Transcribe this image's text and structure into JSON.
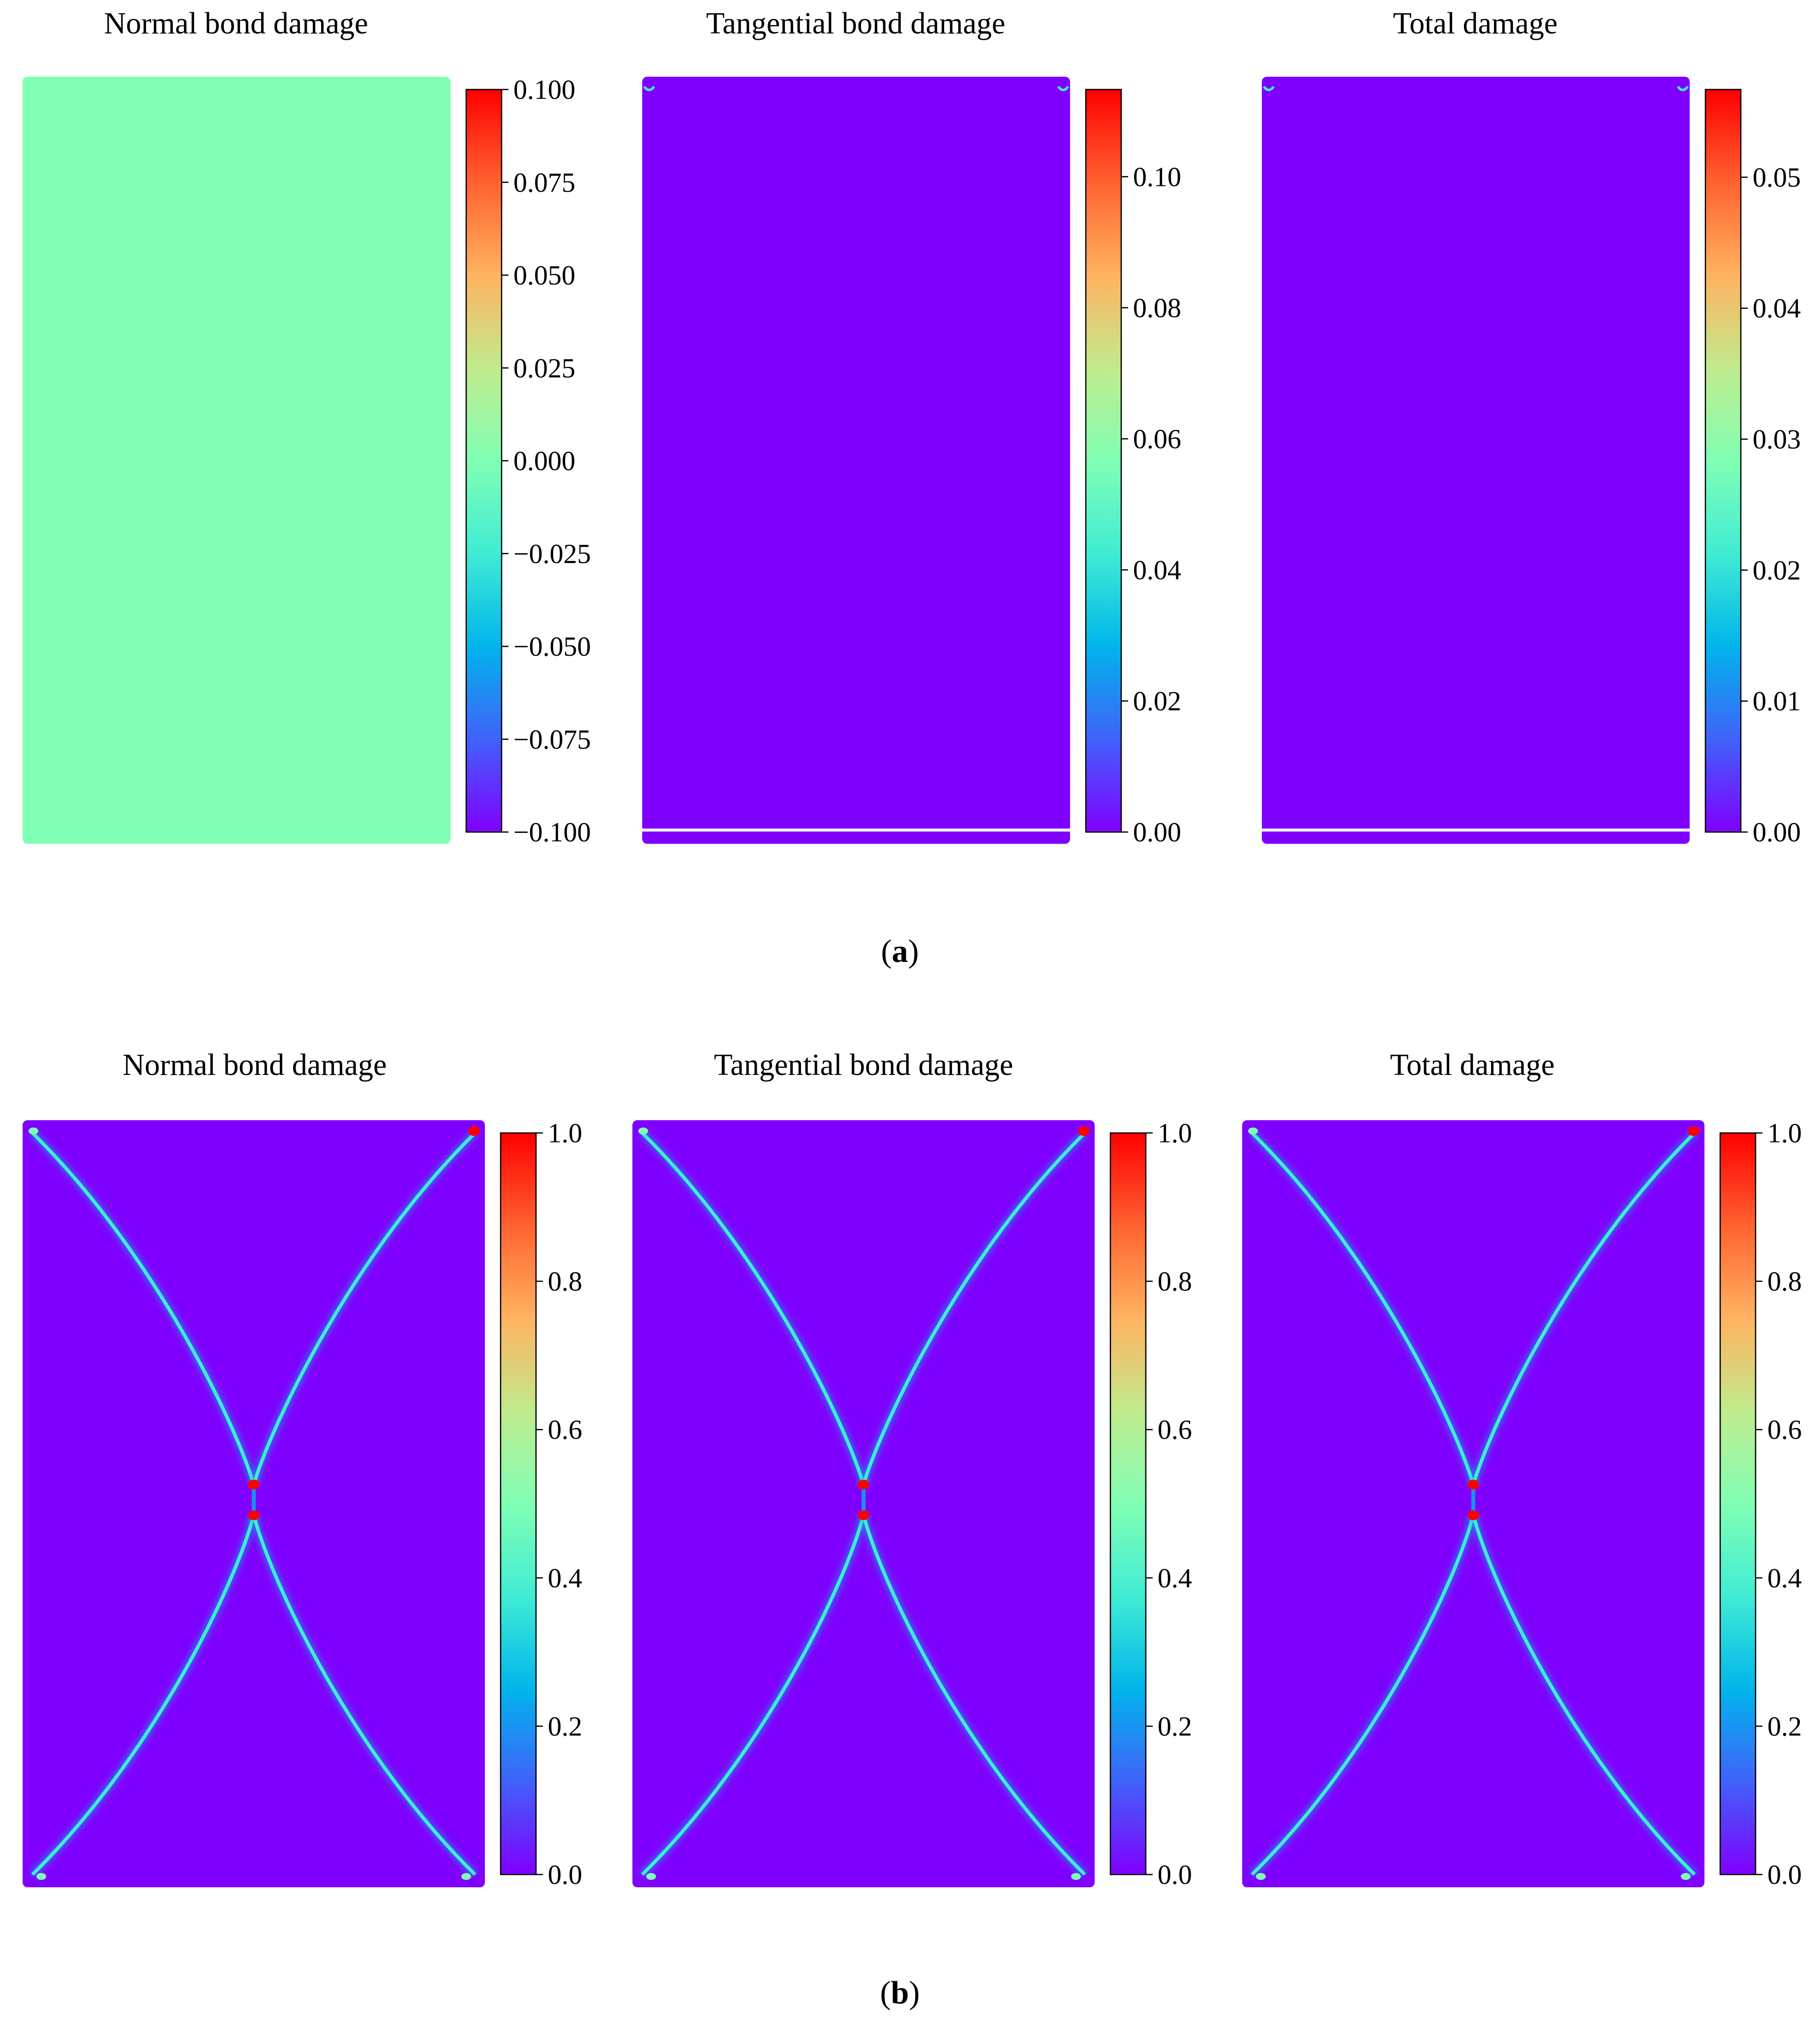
{
  "colors": {
    "rainbow": [
      "#8000ff",
      "#4062fa",
      "#00b5eb",
      "#40ecd4",
      "#80ffb4",
      "#c0eb8d",
      "#ffb360",
      "#ff6230",
      "#ff0000"
    ],
    "uniform_normal_a": "#80ffb4",
    "background_zero": "#8000ff",
    "crack_core": "#40ecd4",
    "crack_tip": "#ff0000"
  },
  "captions": {
    "a": "a",
    "b": "b"
  },
  "chart_data": [
    {
      "type": "heatmap",
      "panel": "a",
      "title": "Normal bond damage",
      "colorbar": {
        "min": -0.1,
        "max": 0.1,
        "ticks": [
          "−0.100",
          "−0.075",
          "−0.050",
          "−0.025",
          "0.000",
          "0.025",
          "0.050",
          "0.075",
          "0.100"
        ]
      },
      "field": "uniform",
      "uniform_value": 0.0,
      "crack": "none"
    },
    {
      "type": "heatmap",
      "panel": "a",
      "title": "Tangential bond damage",
      "colorbar": {
        "min": 0,
        "max": 0.1133,
        "ticks": [
          "0.00",
          "0.02",
          "0.04",
          "0.06",
          "0.08",
          "0.10"
        ]
      },
      "field": "background",
      "uniform_value": 0.0,
      "crack": "corner-initiation"
    },
    {
      "type": "heatmap",
      "panel": "a",
      "title": "Total damage",
      "colorbar": {
        "min": 0,
        "max": 0.0567,
        "ticks": [
          "0.00",
          "0.01",
          "0.02",
          "0.03",
          "0.04",
          "0.05"
        ]
      },
      "field": "background",
      "uniform_value": 0.0,
      "crack": "corner-initiation"
    },
    {
      "type": "heatmap",
      "panel": "b",
      "title": "Normal bond damage",
      "colorbar": {
        "min": 0,
        "max": 1.0,
        "ticks": [
          "0.0",
          "0.2",
          "0.4",
          "0.6",
          "0.8",
          "1.0"
        ]
      },
      "field": "background",
      "uniform_value": 0.0,
      "crack": "X-shaped"
    },
    {
      "type": "heatmap",
      "panel": "b",
      "title": "Tangential bond damage",
      "colorbar": {
        "min": 0,
        "max": 1.0,
        "ticks": [
          "0.0",
          "0.2",
          "0.4",
          "0.6",
          "0.8",
          "1.0"
        ]
      },
      "field": "background",
      "uniform_value": 0.0,
      "crack": "X-shaped"
    },
    {
      "type": "heatmap",
      "panel": "b",
      "title": "Total damage",
      "colorbar": {
        "min": 0,
        "max": 1.0,
        "ticks": [
          "0.0",
          "0.2",
          "0.4",
          "0.6",
          "0.8",
          "1.0"
        ]
      },
      "field": "background",
      "uniform_value": 0.0,
      "crack": "X-shaped"
    }
  ]
}
